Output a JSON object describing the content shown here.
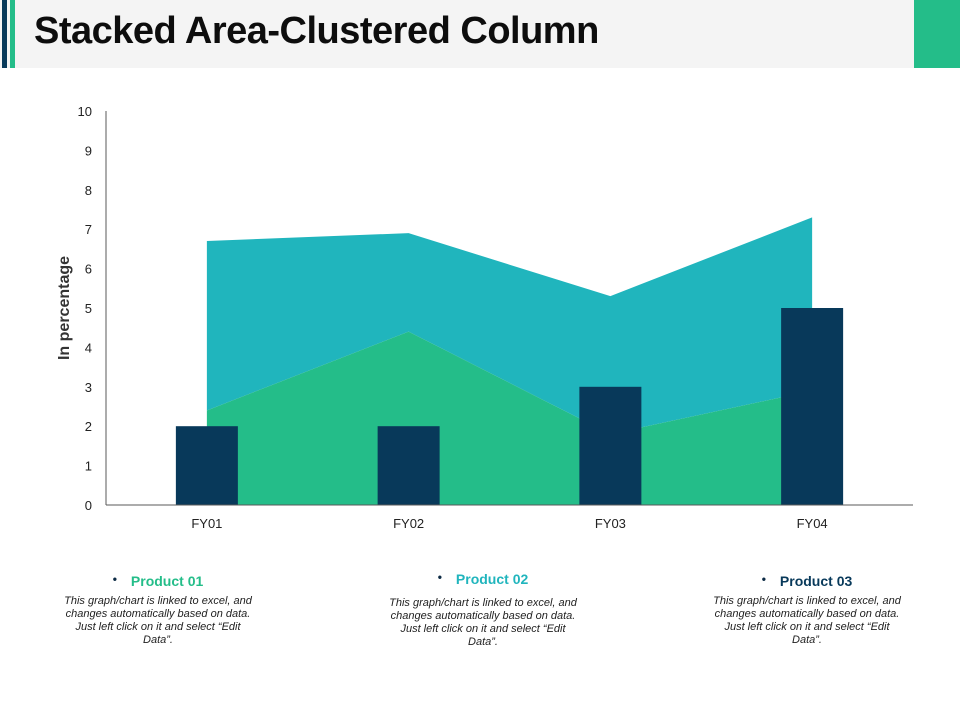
{
  "title": "Stacked Area-Clustered Column",
  "colors": {
    "product01": "#24bd89",
    "product02": "#20b5bd",
    "product03": "#08395a",
    "accent_dark": "#08395a",
    "accent_green": "#24bd89"
  },
  "chart_data": {
    "type": "bar",
    "categories": [
      "FY01",
      "FY02",
      "FY03",
      "FY04"
    ],
    "ylabel": "In percentage",
    "ylim": [
      0,
      10
    ],
    "yticks": [
      "0",
      "1",
      "2",
      "3",
      "4",
      "5",
      "6",
      "7",
      "8",
      "9",
      "10"
    ],
    "series": [
      {
        "name": "Product 01",
        "kind": "stacked-area",
        "values": [
          2.4,
          4.4,
          1.8,
          2.9
        ]
      },
      {
        "name": "Product 02",
        "kind": "stacked-area",
        "values": [
          4.3,
          2.5,
          3.5,
          4.4
        ]
      },
      {
        "name": "Product 03",
        "kind": "clustered-column",
        "values": [
          2,
          2,
          3,
          5
        ]
      }
    ],
    "grid": false
  },
  "legend": [
    {
      "label": "Product 01",
      "color": "#24bd89",
      "text": "This graph/chart is linked to excel, and changes automatically based on data. Just left click on it and select “Edit Data”."
    },
    {
      "label": "Product 02",
      "color": "#20b5bd",
      "text": "This graph/chart is linked to excel, and changes automatically based on data. Just left click on it and select “Edit Data”."
    },
    {
      "label": "Product 03",
      "color": "#08395a",
      "text": "This graph/chart is linked to excel, and changes automatically based on data. Just left click on it and select “Edit Data”."
    }
  ]
}
